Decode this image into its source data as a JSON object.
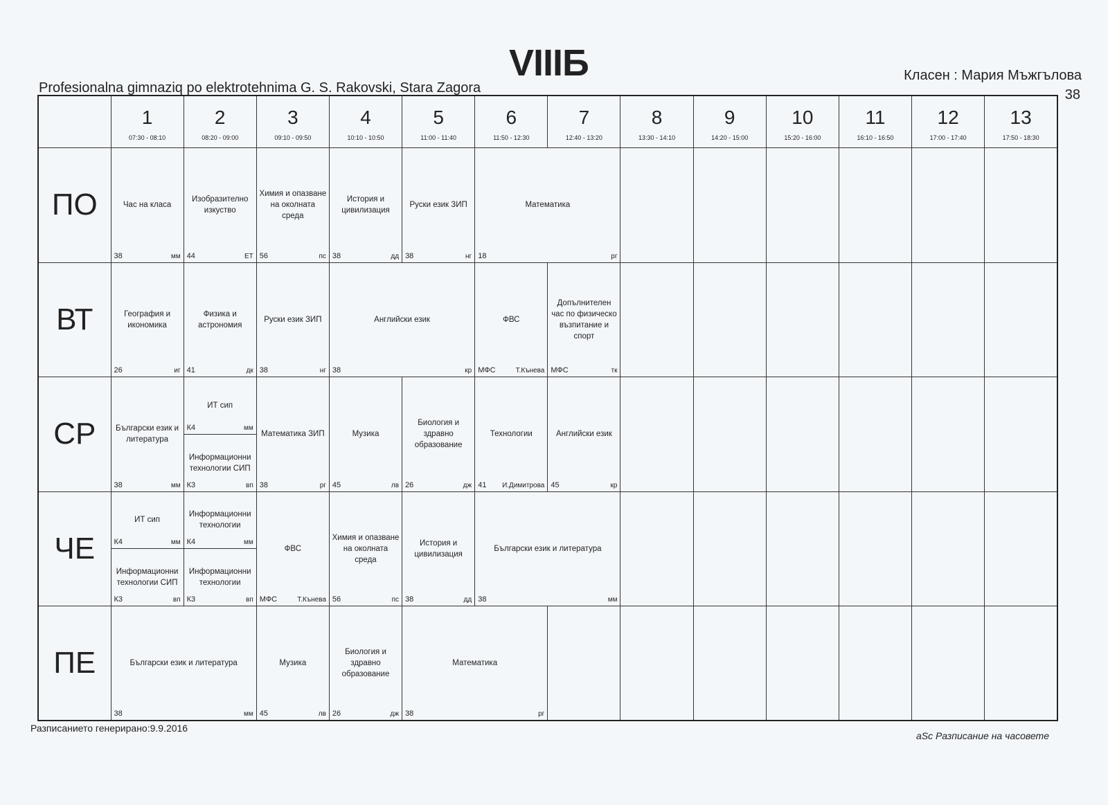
{
  "header": {
    "class_name": "VIIIБ",
    "school": "Profesionalna gimnaziq po elektrotehnima G. S. Rakovski, Stara Zagora",
    "class_teacher": "Класен : Мария Мъжгълова",
    "room": "38"
  },
  "periods": [
    {
      "n": "1",
      "time": "07:30 - 08:10"
    },
    {
      "n": "2",
      "time": "08:20 - 09:00"
    },
    {
      "n": "3",
      "time": "09:10 - 09:50"
    },
    {
      "n": "4",
      "time": "10:10 - 10:50"
    },
    {
      "n": "5",
      "time": "11:00 - 11:40"
    },
    {
      "n": "6",
      "time": "11:50 - 12:30"
    },
    {
      "n": "7",
      "time": "12:40 - 13:20"
    },
    {
      "n": "8",
      "time": "13:30 - 14:10"
    },
    {
      "n": "9",
      "time": "14:20 - 15:00"
    },
    {
      "n": "10",
      "time": "15:20 - 16:00"
    },
    {
      "n": "11",
      "time": "16:10 - 16:50"
    },
    {
      "n": "12",
      "time": "17:00 - 17:40"
    },
    {
      "n": "13",
      "time": "17:50 - 18:30"
    }
  ],
  "days": [
    {
      "name": "ПО",
      "cells": [
        {
          "span": 1,
          "subject": "Час на класа",
          "room": "38",
          "teacher": "мм"
        },
        {
          "span": 1,
          "subject": "Изобразително изкуство",
          "room": "44",
          "teacher": "ЕТ"
        },
        {
          "span": 1,
          "subject": "Химия и опазване на околната среда",
          "room": "56",
          "teacher": "пс"
        },
        {
          "span": 1,
          "subject": "История и цивилизация",
          "room": "38",
          "teacher": "дд"
        },
        {
          "span": 1,
          "subject": "Руски език ЗИП",
          "room": "38",
          "teacher": "нг"
        },
        {
          "span": 2,
          "subject": "Математика",
          "room": "18",
          "teacher": "рг"
        },
        {
          "span": 6,
          "empty": true
        }
      ]
    },
    {
      "name": "ВТ",
      "cells": [
        {
          "span": 1,
          "subject": "География и икономика",
          "room": "26",
          "teacher": "иг"
        },
        {
          "span": 1,
          "subject": "Физика и астрономия",
          "room": "41",
          "teacher": "дк"
        },
        {
          "span": 1,
          "subject": "Руски език ЗИП",
          "room": "38",
          "teacher": "нг"
        },
        {
          "span": 2,
          "subject": "Английски език",
          "room": "38",
          "teacher": "кр"
        },
        {
          "span": 1,
          "subject": "ФВС",
          "room": "МФС",
          "teacher": "Т.Кънева"
        },
        {
          "span": 1,
          "subject": "Допълнителен час по физическо възпитание и спорт",
          "room": "МФС",
          "teacher": "тк"
        },
        {
          "span": 6,
          "empty": true
        }
      ]
    },
    {
      "name": "СР",
      "cells": [
        {
          "span": 1,
          "subject": "Български език и литература",
          "room": "38",
          "teacher": "мм"
        },
        {
          "span": 1,
          "split": [
            {
              "subject": "ИТ сип",
              "room": "К4",
              "teacher": "мм"
            },
            {
              "subject": "Информационни технологии СИП",
              "room": "К3",
              "teacher": "вп"
            }
          ]
        },
        {
          "span": 1,
          "subject": "Математика ЗИП",
          "room": "38",
          "teacher": "рг"
        },
        {
          "span": 1,
          "subject": "Музика",
          "room": "45",
          "teacher": "лв"
        },
        {
          "span": 1,
          "subject": "Биология и здравно образование",
          "room": "26",
          "teacher": "дж"
        },
        {
          "span": 1,
          "subject": "Технологии",
          "room": "41",
          "teacher": "И.Димитрова"
        },
        {
          "span": 1,
          "subject": "Английски език",
          "room": "45",
          "teacher": "кр"
        },
        {
          "span": 6,
          "empty": true
        }
      ]
    },
    {
      "name": "ЧЕ",
      "cells": [
        {
          "span": 1,
          "split": [
            {
              "subject": "ИТ сип",
              "room": "К4",
              "teacher": "мм"
            },
            {
              "subject": "Информационни технологии СИП",
              "room": "К3",
              "teacher": "вп"
            }
          ]
        },
        {
          "span": 1,
          "split": [
            {
              "subject": "Информационни технологии",
              "room": "К4",
              "teacher": "мм"
            },
            {
              "subject": "Информационни технологии",
              "room": "К3",
              "teacher": "вп"
            }
          ]
        },
        {
          "span": 1,
          "subject": "ФВС",
          "room": "МФС",
          "teacher": "Т.Кънева"
        },
        {
          "span": 1,
          "subject": "Химия и опазване на околната среда",
          "room": "56",
          "teacher": "пс"
        },
        {
          "span": 1,
          "subject": "История и цивилизация",
          "room": "38",
          "teacher": "дд"
        },
        {
          "span": 2,
          "subject": "Български език и литература",
          "room": "38",
          "teacher": "мм"
        },
        {
          "span": 6,
          "empty": true
        }
      ]
    },
    {
      "name": "ПЕ",
      "cells": [
        {
          "span": 2,
          "subject": "Български език и литература",
          "room": "38",
          "teacher": "мм"
        },
        {
          "span": 1,
          "subject": "Музика",
          "room": "45",
          "teacher": "лв"
        },
        {
          "span": 1,
          "subject": "Биология и здравно образование",
          "room": "26",
          "teacher": "дж"
        },
        {
          "span": 2,
          "subject": "Математика",
          "room": "38",
          "teacher": "рг"
        },
        {
          "span": 7,
          "empty": true
        }
      ]
    }
  ],
  "footer": {
    "generated": "Разписанието генерирано:9.9.2016",
    "software": "aSc Разписание на часовете"
  }
}
